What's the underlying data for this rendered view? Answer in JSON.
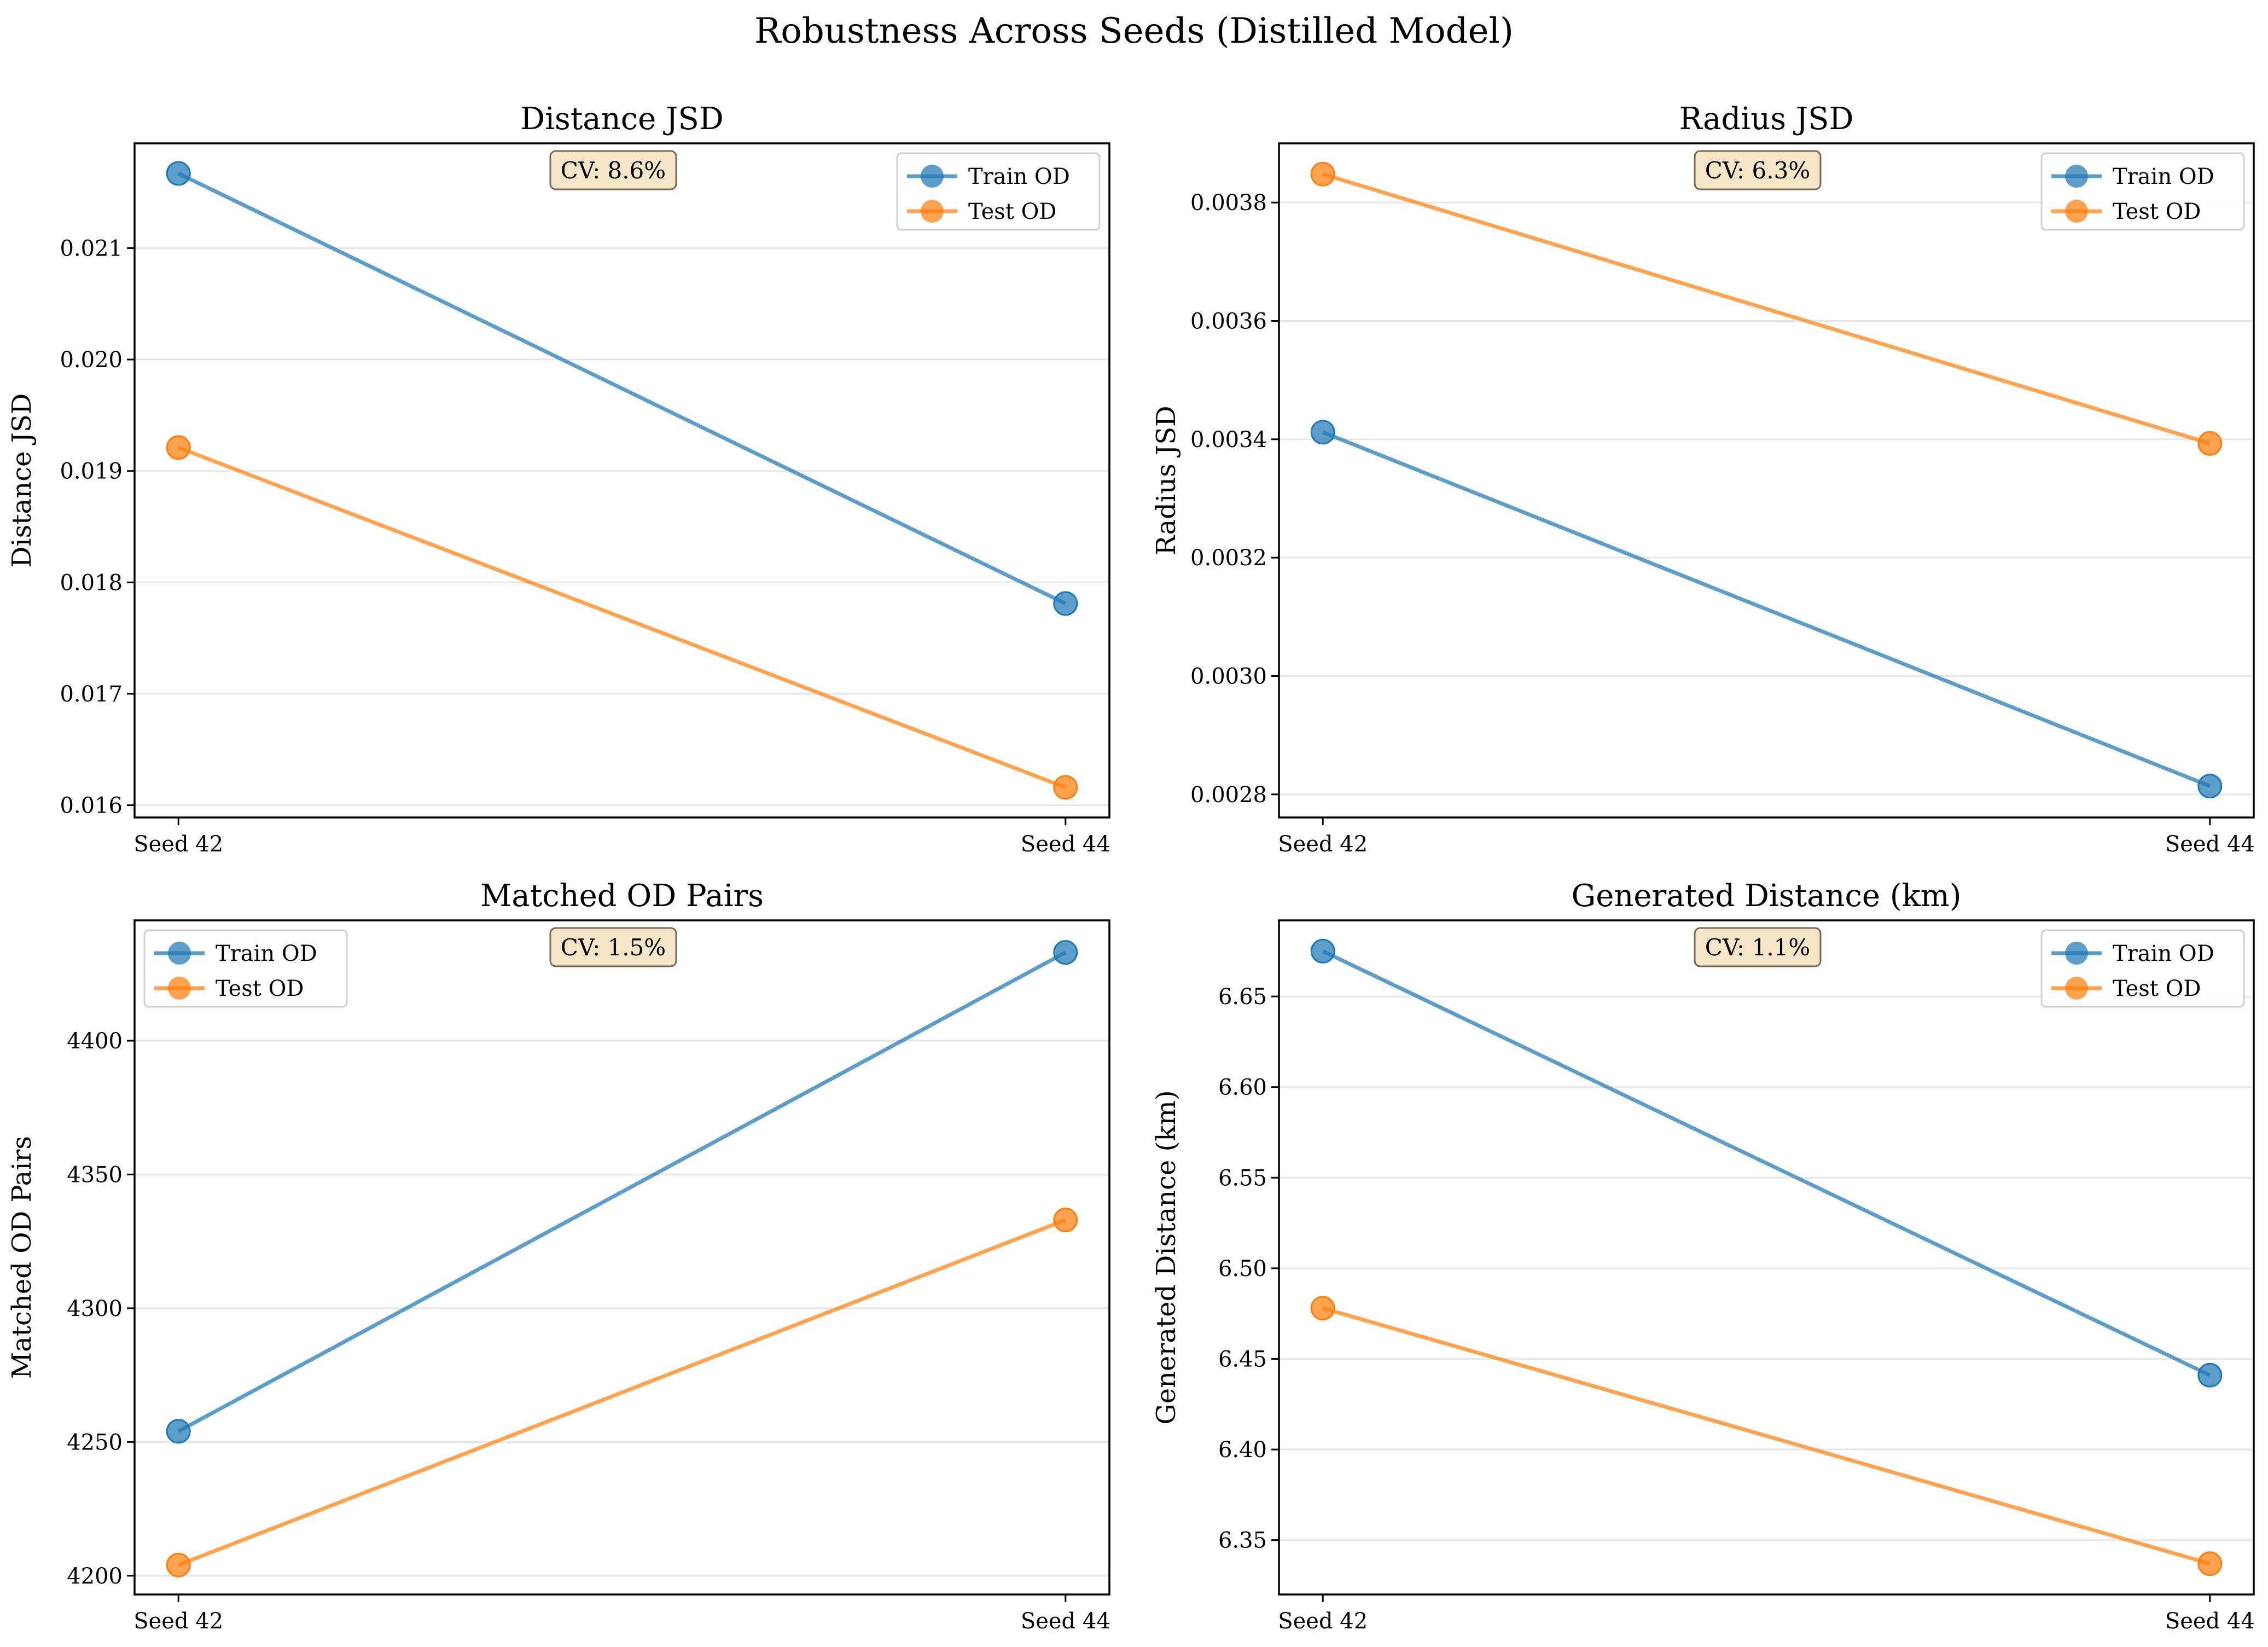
{
  "title": "Robustness Across Seeds (Distilled Model)",
  "colors": {
    "train": "#1f77b4",
    "test": "#ff7f0e",
    "cv_box_fill": "#f5e6c8",
    "cv_box_edge": "#7a6a55",
    "grid": "#e6e6e6"
  },
  "chart_data": [
    {
      "type": "line",
      "title": "Distance JSD",
      "ylabel": "Distance JSD",
      "categories": [
        "Seed 42",
        "Seed 44"
      ],
      "series": [
        {
          "name": "Train OD",
          "values": [
            0.02167,
            0.01781
          ]
        },
        {
          "name": "Test OD",
          "values": [
            0.01921,
            0.01616
          ]
        }
      ],
      "ylim": [
        0.01589,
        0.02194
      ],
      "yticks": [
        0.016,
        0.017,
        0.018,
        0.019,
        0.02,
        0.021
      ],
      "ytick_labels": [
        "0.016",
        "0.017",
        "0.018",
        "0.019",
        "0.020",
        "0.021"
      ],
      "annotation": "CV: 8.6%",
      "legend": "upper right",
      "grid": "y"
    },
    {
      "type": "line",
      "title": "Radius JSD",
      "ylabel": "Radius JSD",
      "categories": [
        "Seed 42",
        "Seed 44"
      ],
      "series": [
        {
          "name": "Train OD",
          "values": [
            0.003412,
            0.002814
          ]
        },
        {
          "name": "Test OD",
          "values": [
            0.003848,
            0.003393
          ]
        }
      ],
      "ylim": [
        0.002761,
        0.0039
      ],
      "yticks": [
        0.0028,
        0.003,
        0.0032,
        0.0034,
        0.0036,
        0.0038
      ],
      "ytick_labels": [
        "0.0028",
        "0.0030",
        "0.0032",
        "0.0034",
        "0.0036",
        "0.0038"
      ],
      "annotation": "CV: 6.3%",
      "legend": "upper right",
      "grid": "y"
    },
    {
      "type": "line",
      "title": "Matched OD Pairs",
      "ylabel": "Matched OD Pairs",
      "categories": [
        "Seed 42",
        "Seed 44"
      ],
      "series": [
        {
          "name": "Train OD",
          "values": [
            4254,
            4433
          ]
        },
        {
          "name": "Test OD",
          "values": [
            4204,
            4333
          ]
        }
      ],
      "ylim": [
        4193,
        4445
      ],
      "yticks": [
        4200,
        4250,
        4300,
        4350,
        4400
      ],
      "ytick_labels": [
        "4200",
        "4250",
        "4300",
        "4350",
        "4400"
      ],
      "annotation": "CV: 1.5%",
      "legend": "upper left",
      "grid": "y"
    },
    {
      "type": "line",
      "title": "Generated Distance (km)",
      "ylabel": "Generated Distance (km)",
      "categories": [
        "Seed 42",
        "Seed 44"
      ],
      "series": [
        {
          "name": "Train OD",
          "values": [
            6.675,
            6.441
          ]
        },
        {
          "name": "Test OD",
          "values": [
            6.478,
            6.337
          ]
        }
      ],
      "ylim": [
        6.32,
        6.692
      ],
      "yticks": [
        6.35,
        6.4,
        6.45,
        6.5,
        6.55,
        6.6,
        6.65
      ],
      "ytick_labels": [
        "6.35",
        "6.40",
        "6.45",
        "6.50",
        "6.55",
        "6.60",
        "6.65"
      ],
      "annotation": "CV: 1.1%",
      "legend": "upper right",
      "grid": "y"
    }
  ]
}
